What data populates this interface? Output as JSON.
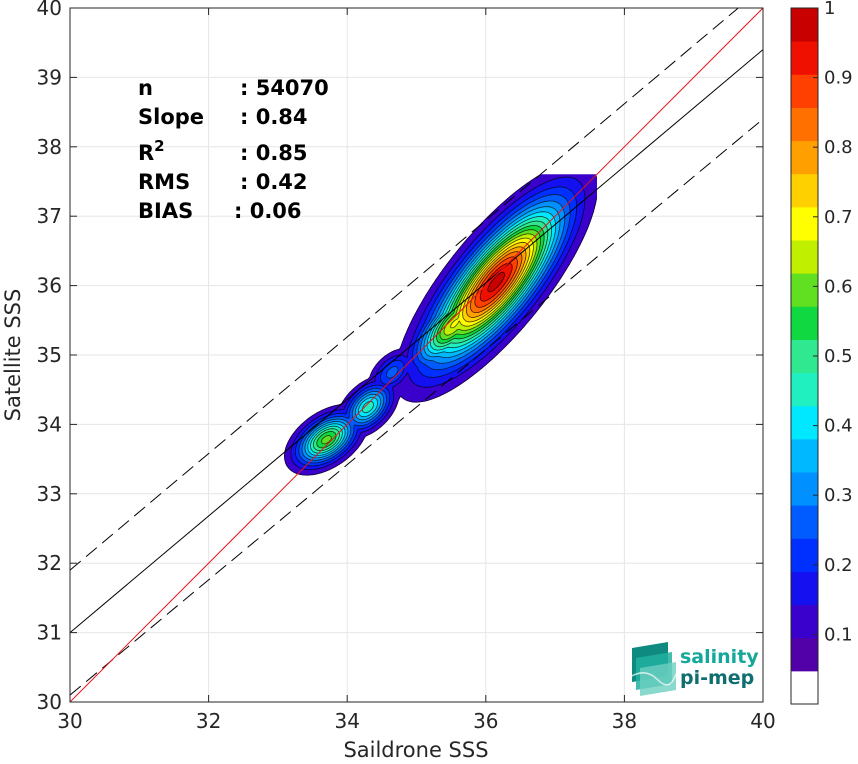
{
  "chart_data": {
    "type": "contour-scatter",
    "xlabel": "Saildrone SSS",
    "ylabel": "Satellite SSS",
    "xlim": [
      30,
      40
    ],
    "ylim": [
      30,
      40
    ],
    "x_ticks": [
      "30",
      "32",
      "34",
      "36",
      "38",
      "40"
    ],
    "y_ticks": [
      "30",
      "31",
      "32",
      "33",
      "34",
      "35",
      "36",
      "37",
      "38",
      "39",
      "40"
    ],
    "grid": true,
    "stats": {
      "n_label": "n",
      "n_value": ": 54070",
      "slope_label": "Slope",
      "slope_value": ": 0.84",
      "r2_label": "R",
      "r2_sup": "2",
      "r2_value": ": 0.85",
      "rms_label": "RMS",
      "rms_value": ": 0.42",
      "bias_label": "BIAS",
      "bias_value": ": 0.06"
    },
    "reference_lines": {
      "identity": {
        "slope": 1,
        "intercept": 0,
        "color": "#e8141e"
      },
      "fit": {
        "x": [
          30,
          40
        ],
        "y": [
          31.0,
          39.4
        ],
        "color": "#000000"
      },
      "fit_plus": {
        "x": [
          30,
          40
        ],
        "y": [
          31.9,
          40.3
        ],
        "color": "#000000",
        "style": "dashed"
      },
      "fit_minus": {
        "x": [
          30,
          40
        ],
        "y": [
          30.1,
          38.4
        ],
        "color": "#000000",
        "style": "dashed"
      }
    },
    "density_levels": [
      0.05,
      0.1,
      0.15,
      0.2,
      0.25,
      0.3,
      0.35,
      0.4,
      0.45,
      0.5,
      0.55,
      0.6,
      0.65,
      0.7,
      0.75,
      0.8,
      0.85,
      0.9,
      0.95
    ],
    "density_colors": [
      "#5200a8",
      "#3a00cc",
      "#1410f0",
      "#0030ff",
      "#005cff",
      "#0090ff",
      "#00b8ff",
      "#00e8ff",
      "#20f0c0",
      "#30e890",
      "#10d840",
      "#60e020",
      "#c0f000",
      "#ffff00",
      "#ffd000",
      "#ffa000",
      "#ff7000",
      "#ff4000",
      "#f01000",
      "#c80000"
    ],
    "density_clusters": [
      {
        "cx": 36.15,
        "cy": 36.05,
        "rx": 1.85,
        "ry": 0.62,
        "angle": 51,
        "peak": 0.97
      },
      {
        "cx": 35.55,
        "cy": 35.45,
        "rx": 1.0,
        "ry": 0.42,
        "angle": 48,
        "peak": 0.66
      },
      {
        "cx": 33.7,
        "cy": 33.78,
        "rx": 0.65,
        "ry": 0.38,
        "angle": 35,
        "peak": 0.57
      },
      {
        "cx": 34.3,
        "cy": 34.25,
        "rx": 0.55,
        "ry": 0.34,
        "angle": 45,
        "peak": 0.43
      },
      {
        "cx": 34.65,
        "cy": 34.75,
        "rx": 0.5,
        "ry": 0.3,
        "angle": 45,
        "peak": 0.22
      }
    ],
    "colorbar": {
      "min": 0,
      "max": 1,
      "tick_values": [
        0.1,
        0.2,
        0.3,
        0.4,
        0.5,
        0.6,
        0.7,
        0.8,
        0.9,
        1
      ],
      "tick_labels": [
        "0.1",
        "0.2",
        "0.3",
        "0.4",
        "0.5",
        "0.6",
        "0.7",
        "0.8",
        "0.9",
        "1"
      ],
      "segment_colors": [
        "#ffffff",
        "#5200a8",
        "#3a00cc",
        "#1410f0",
        "#0030ff",
        "#005cff",
        "#0090ff",
        "#00b8ff",
        "#00e8ff",
        "#20f0c0",
        "#30e890",
        "#10d840",
        "#60e020",
        "#c0f000",
        "#ffff00",
        "#ffd000",
        "#ffa000",
        "#ff7000",
        "#ff4000",
        "#f01000",
        "#c80000"
      ]
    }
  },
  "logo": {
    "line1": "salinity",
    "line2": "pi-mep"
  }
}
